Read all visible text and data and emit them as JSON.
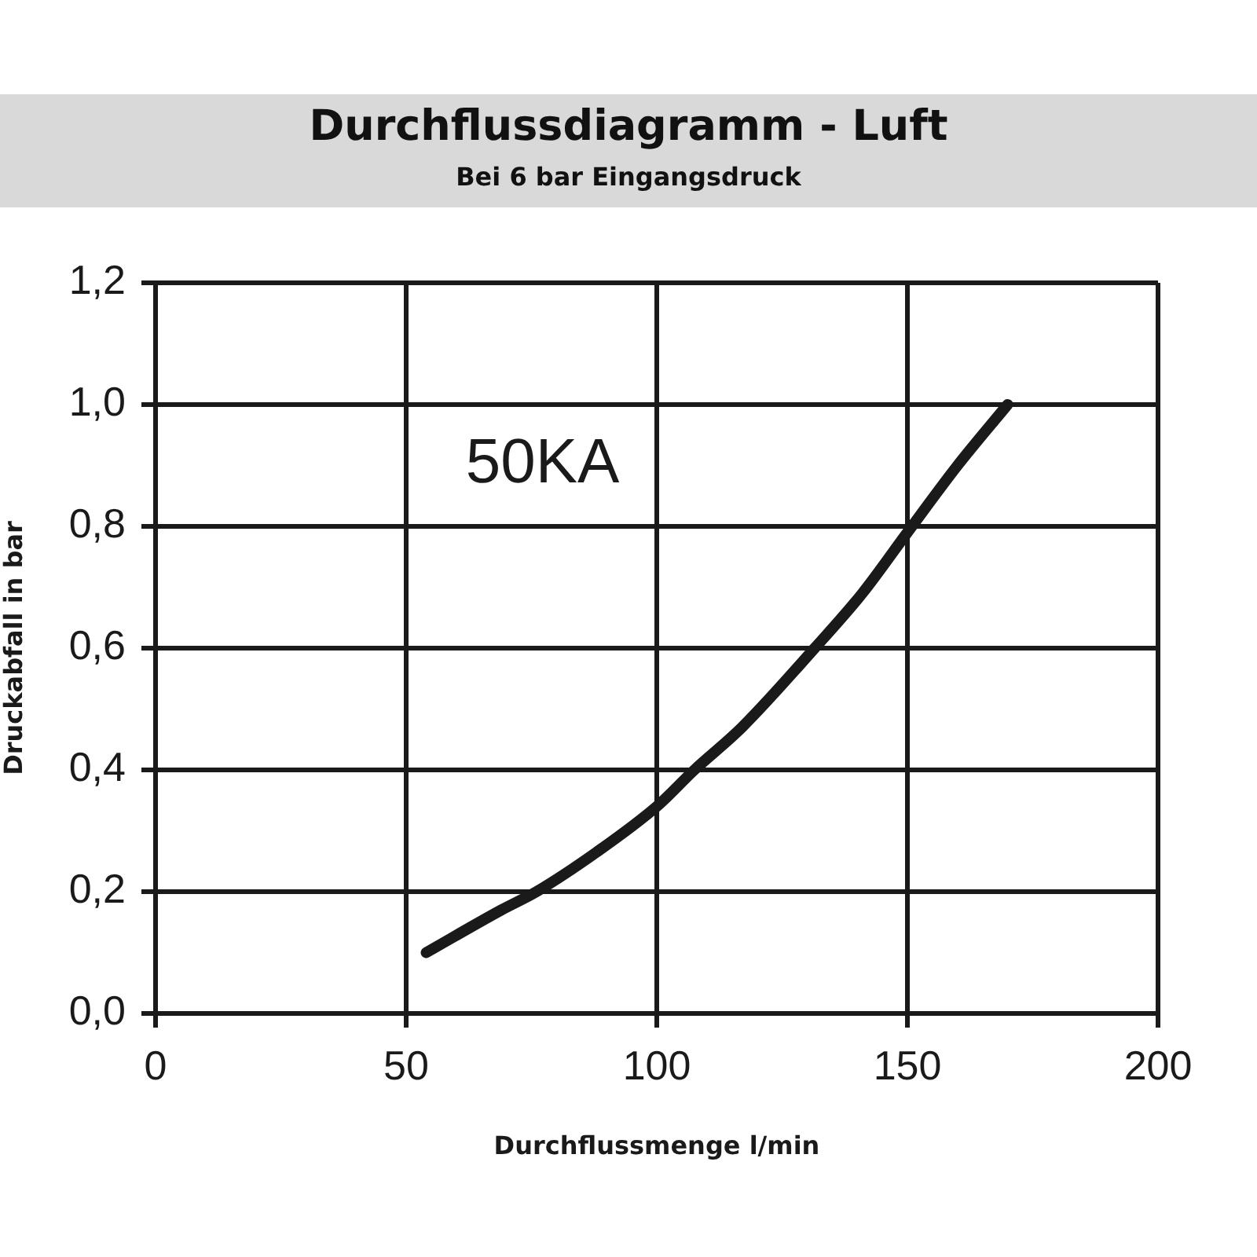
{
  "chart_data": {
    "type": "line",
    "title": "Durchflussdiagramm - Luft",
    "subtitle": "Bei 6 bar Eingangsdruck",
    "xlabel": "Durchflussmenge l/min",
    "ylabel": "Druckabfall in bar",
    "series": [
      {
        "name": "50KA",
        "color": "#1a1a1a",
        "x": [
          54,
          69,
          76,
          88,
          100,
          107.5,
          117,
          131.5,
          141,
          150,
          160,
          170
        ],
        "values": [
          0.1,
          0.17,
          0.2,
          0.265,
          0.34,
          0.4,
          0.47,
          0.6,
          0.69,
          0.79,
          0.9,
          1.0
        ]
      }
    ],
    "xlim": [
      0,
      200
    ],
    "xticks": [
      0,
      50,
      100,
      150,
      200
    ],
    "ylim": [
      0,
      1.2
    ],
    "yticks": [
      {
        "value": 0,
        "label": "0,0"
      },
      {
        "value": 0.2,
        "label": "0,2"
      },
      {
        "value": 0.4,
        "label": "0,4"
      },
      {
        "value": 0.6,
        "label": "0,6"
      },
      {
        "value": 0.8,
        "label": "0,8"
      },
      {
        "value": 1.0,
        "label": "1,0"
      },
      {
        "value": 1.2,
        "label": "1,2"
      }
    ],
    "grid": true,
    "legend": false,
    "marker": "none",
    "line_style": "solid"
  }
}
